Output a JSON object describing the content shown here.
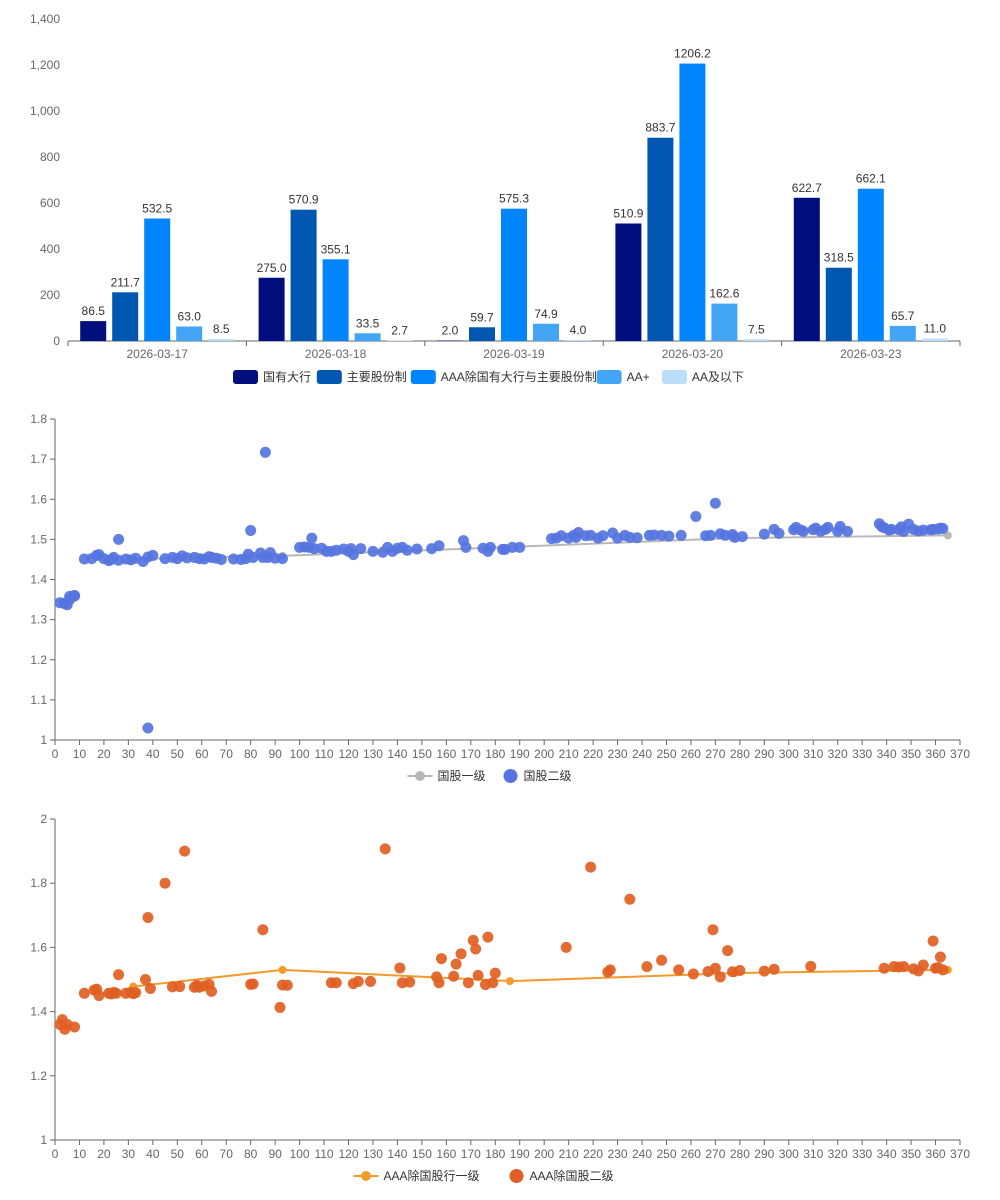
{
  "colors": {
    "bar_series": [
      "#000f7d",
      "#0057b1",
      "#0085ff",
      "#42a5f5",
      "#bbdefb"
    ],
    "ch2_line": "#b9b9b9",
    "ch2_scatter": "#5574e0",
    "ch3_line": "#f59a2a",
    "ch3_scatter": "#df5f23"
  },
  "chart_data": [
    {
      "type": "bar",
      "categories": [
        "2026-03-17",
        "2026-03-18",
        "2026-03-19",
        "2026-03-20",
        "2026-03-23"
      ],
      "series": [
        {
          "name": "国有大行",
          "values": [
            86.5,
            275.0,
            2.0,
            510.9,
            622.7
          ]
        },
        {
          "name": "主要股份制",
          "values": [
            211.7,
            570.9,
            59.7,
            883.7,
            318.5
          ]
        },
        {
          "name": "AAA除国有大行与主要股份制",
          "values": [
            532.5,
            355.1,
            575.3,
            1206.2,
            662.1
          ]
        },
        {
          "name": "AA+",
          "values": [
            63.0,
            33.5,
            74.9,
            162.6,
            65.7
          ]
        },
        {
          "name": "AA及以下",
          "values": [
            8.5,
            2.7,
            4.0,
            7.5,
            11.0
          ]
        }
      ],
      "value_labels": [
        [
          "86.5",
          "275.0",
          "2.0",
          "510.9",
          "622.7"
        ],
        [
          "211.7",
          "570.9",
          "59.7",
          "883.7",
          "318.5"
        ],
        [
          "532.5",
          "355.1",
          "575.3",
          "1206.2",
          "662.1"
        ],
        [
          "63.0",
          "33.5",
          "74.9",
          "162.6",
          "65.7"
        ],
        [
          "8.5",
          "2.7",
          "4.0",
          "7.5",
          "11.0"
        ]
      ],
      "ylim": [
        0,
        1400
      ],
      "yticks": [
        0,
        200,
        400,
        600,
        800,
        1000,
        1200,
        1400
      ],
      "ytick_labels": [
        "0",
        "200",
        "400",
        "600",
        "800",
        "1,000",
        "1,200",
        "1,400"
      ],
      "legend_position": "bottom"
    },
    {
      "type": "scatter",
      "xlim": [
        0,
        370
      ],
      "ylim": [
        1,
        1.8
      ],
      "xticks": [
        0,
        10,
        20,
        30,
        40,
        50,
        60,
        70,
        80,
        90,
        100,
        110,
        120,
        130,
        140,
        150,
        160,
        170,
        180,
        190,
        200,
        210,
        220,
        230,
        240,
        250,
        260,
        270,
        280,
        290,
        300,
        310,
        320,
        330,
        340,
        350,
        360,
        370
      ],
      "xtick_labels": [
        "0",
        "10",
        "20",
        "30",
        "40",
        "50",
        "60",
        "70",
        "80",
        "90",
        "100",
        "110",
        "120",
        "130",
        "140",
        "150",
        "160",
        "170",
        "180",
        "190",
        "200",
        "210",
        "220",
        "230",
        "240",
        "250",
        "260",
        "270",
        "280",
        "290",
        "300",
        "310",
        "320",
        "330",
        "340",
        "350",
        "360",
        "370"
      ],
      "yticks": [
        1,
        1.1,
        1.2,
        1.3,
        1.4,
        1.5,
        1.6,
        1.7,
        1.8
      ],
      "ytick_labels": [
        "1",
        "1.1",
        "1.2",
        "1.3",
        "1.4",
        "1.5",
        "1.6",
        "1.7",
        "1.8"
      ],
      "line_series": {
        "name": "国股一级",
        "x": [
          32,
          93,
          277,
          365
        ],
        "y": [
          1.451,
          1.459,
          1.503,
          1.51
        ]
      },
      "scatter_series": {
        "name": "国股二级",
        "x": [
          2,
          4,
          4,
          5,
          6,
          6,
          8,
          8,
          12,
          15,
          17,
          18,
          20,
          22,
          23,
          24,
          26,
          26,
          29,
          31,
          33,
          36,
          38,
          38,
          40,
          45,
          48,
          50,
          52,
          54,
          57,
          59,
          61,
          63,
          64,
          66,
          68,
          73,
          76,
          78,
          79,
          80,
          81,
          84,
          85,
          86,
          87,
          88,
          90,
          93,
          100,
          102,
          104,
          105,
          106,
          109,
          111,
          113,
          115,
          118,
          120,
          121,
          122,
          125,
          130,
          134,
          136,
          138,
          140,
          142,
          144,
          148,
          154,
          157,
          167,
          168,
          175,
          177,
          178,
          183,
          184,
          187,
          190,
          203,
          205,
          207,
          210,
          212,
          213,
          214,
          217,
          219,
          222,
          224,
          228,
          230,
          233,
          235,
          238,
          243,
          245,
          248,
          251,
          256,
          262,
          266,
          268,
          270,
          272,
          274,
          277,
          278,
          281,
          290,
          294,
          296,
          302,
          303,
          305,
          306,
          310,
          311,
          313,
          315,
          316,
          320,
          321,
          324,
          337,
          338,
          339,
          341,
          342,
          345,
          346,
          347,
          349,
          351,
          353,
          355,
          358,
          359,
          361,
          362,
          363
        ],
        "y": [
          1.342,
          1.34,
          1.341,
          1.337,
          1.358,
          1.35,
          1.36,
          1.359,
          1.451,
          1.452,
          1.46,
          1.462,
          1.452,
          1.447,
          1.45,
          1.455,
          1.5,
          1.448,
          1.451,
          1.449,
          1.453,
          1.445,
          1.456,
          1.03,
          1.46,
          1.452,
          1.455,
          1.452,
          1.459,
          1.454,
          1.455,
          1.452,
          1.451,
          1.457,
          1.455,
          1.453,
          1.45,
          1.451,
          1.45,
          1.452,
          1.463,
          1.522,
          1.455,
          1.466,
          1.455,
          1.717,
          1.455,
          1.467,
          1.453,
          1.452,
          1.48,
          1.481,
          1.48,
          1.503,
          1.477,
          1.478,
          1.47,
          1.47,
          1.473,
          1.476,
          1.47,
          1.477,
          1.462,
          1.477,
          1.47,
          1.468,
          1.48,
          1.47,
          1.478,
          1.48,
          1.473,
          1.476,
          1.477,
          1.484,
          1.497,
          1.48,
          1.478,
          1.47,
          1.48,
          1.475,
          1.475,
          1.48,
          1.48,
          1.502,
          1.503,
          1.509,
          1.503,
          1.51,
          1.505,
          1.517,
          1.509,
          1.51,
          1.503,
          1.509,
          1.516,
          1.503,
          1.51,
          1.505,
          1.504,
          1.51,
          1.511,
          1.51,
          1.508,
          1.51,
          1.557,
          1.509,
          1.51,
          1.59,
          1.514,
          1.51,
          1.512,
          1.505,
          1.507,
          1.513,
          1.525,
          1.515,
          1.524,
          1.53,
          1.523,
          1.52,
          1.524,
          1.528,
          1.52,
          1.525,
          1.53,
          1.52,
          1.532,
          1.52,
          1.539,
          1.532,
          1.529,
          1.523,
          1.525,
          1.524,
          1.531,
          1.52,
          1.538,
          1.525,
          1.521,
          1.523,
          1.524,
          1.525,
          1.526,
          1.528,
          1.527
        ]
      }
    },
    {
      "type": "scatter",
      "xlim": [
        0,
        370
      ],
      "ylim": [
        1,
        2
      ],
      "xticks": [
        0,
        10,
        20,
        30,
        40,
        50,
        60,
        70,
        80,
        90,
        100,
        110,
        120,
        130,
        140,
        150,
        160,
        170,
        180,
        190,
        200,
        210,
        220,
        230,
        240,
        250,
        260,
        270,
        280,
        290,
        300,
        310,
        320,
        330,
        340,
        350,
        360,
        370
      ],
      "xtick_labels": [
        "0",
        "10",
        "20",
        "30",
        "40",
        "50",
        "60",
        "70",
        "80",
        "90",
        "100",
        "110",
        "120",
        "130",
        "140",
        "150",
        "160",
        "170",
        "180",
        "190",
        "200",
        "210",
        "220",
        "230",
        "240",
        "250",
        "260",
        "270",
        "280",
        "290",
        "300",
        "310",
        "320",
        "330",
        "340",
        "350",
        "360",
        "370"
      ],
      "yticks": [
        1,
        1.2,
        1.4,
        1.6,
        1.8,
        2
      ],
      "ytick_labels": [
        "1",
        "1.2",
        "1.4",
        "1.6",
        "1.8",
        "2"
      ],
      "line_series": {
        "name": "AAA除国股行一级",
        "x": [
          32,
          93,
          186,
          278,
          365
        ],
        "y": [
          1.478,
          1.53,
          1.495,
          1.52,
          1.53
        ]
      },
      "scatter_series": {
        "name": "AAA除国股二级",
        "x": [
          2,
          3,
          4,
          5,
          8,
          12,
          16,
          17,
          18,
          22,
          23,
          24,
          25,
          26,
          29,
          31,
          32,
          33,
          37,
          38,
          39,
          45,
          48,
          51,
          53,
          57,
          58,
          59,
          61,
          63,
          64,
          80,
          81,
          85,
          92,
          93,
          95,
          113,
          115,
          122,
          124,
          129,
          135,
          141,
          142,
          145,
          156,
          157,
          158,
          163,
          164,
          166,
          169,
          171,
          172,
          173,
          176,
          177,
          179,
          180,
          209,
          219,
          226,
          227,
          235,
          242,
          248,
          255,
          261,
          267,
          269,
          270,
          272,
          275,
          277,
          280,
          290,
          294,
          309,
          339,
          343,
          345,
          347,
          351,
          353,
          355,
          359,
          360,
          361,
          362,
          363
        ],
        "y": [
          1.36,
          1.375,
          1.345,
          1.36,
          1.352,
          1.457,
          1.467,
          1.47,
          1.45,
          1.457,
          1.455,
          1.46,
          1.457,
          1.515,
          1.457,
          1.46,
          1.456,
          1.459,
          1.5,
          1.693,
          1.472,
          1.8,
          1.477,
          1.478,
          1.9,
          1.476,
          1.482,
          1.476,
          1.48,
          1.485,
          1.463,
          1.485,
          1.486,
          1.655,
          1.413,
          1.483,
          1.482,
          1.49,
          1.49,
          1.487,
          1.494,
          1.494,
          1.907,
          1.536,
          1.49,
          1.492,
          1.508,
          1.49,
          1.565,
          1.51,
          1.548,
          1.58,
          1.49,
          1.622,
          1.595,
          1.513,
          1.484,
          1.632,
          1.49,
          1.52,
          1.6,
          1.85,
          1.523,
          1.53,
          1.75,
          1.54,
          1.56,
          1.53,
          1.517,
          1.525,
          1.655,
          1.535,
          1.508,
          1.59,
          1.524,
          1.528,
          1.526,
          1.532,
          1.541,
          1.535,
          1.54,
          1.539,
          1.54,
          1.533,
          1.527,
          1.545,
          1.62,
          1.535,
          1.537,
          1.57,
          1.53
        ]
      }
    }
  ],
  "legends": {
    "chart2_line": "国股一级",
    "chart2_scatter": "国股二级",
    "chart3_line": "AAA除国股行一级",
    "chart3_scatter": "AAA除国股二级"
  }
}
